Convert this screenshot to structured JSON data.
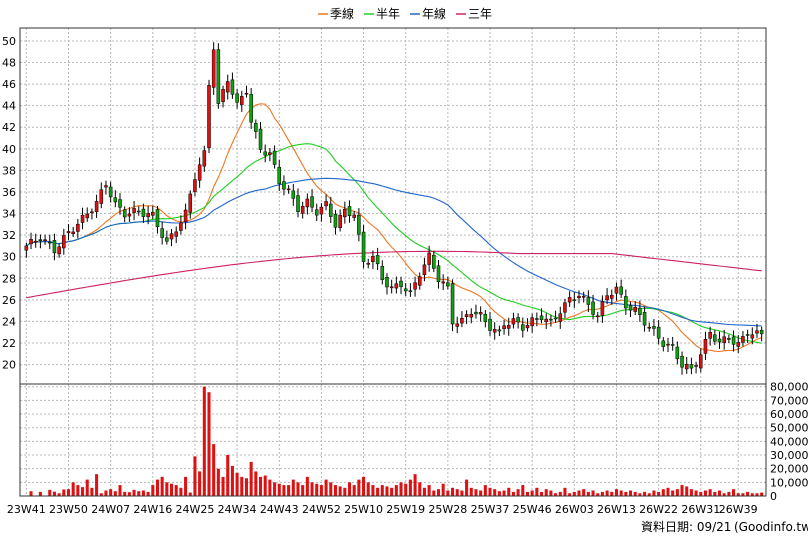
{
  "legend": [
    {
      "name": "季線",
      "color": "#ee7722"
    },
    {
      "name": "半年",
      "color": "#22cc22"
    },
    {
      "name": "年線",
      "color": "#2266cc"
    },
    {
      "name": "三年",
      "color": "#cc2266"
    }
  ],
  "footer": {
    "date_label": "資料日期: 09/21",
    "site": "(Goodinfo.tw)"
  },
  "chart_data": {
    "type": "candlestick",
    "price_axis": {
      "ticks": [
        20,
        22,
        24,
        26,
        28,
        30,
        32,
        34,
        36,
        38,
        40,
        42,
        44,
        46,
        48,
        50
      ],
      "ylim": [
        18.2,
        51.2
      ]
    },
    "volume_axis": {
      "ticks": [
        0,
        10000,
        20000,
        30000,
        40000,
        50000,
        60000,
        70000,
        80000
      ],
      "tick_labels": [
        "0",
        "10,000",
        "20,000",
        "30,000",
        "40,000",
        "50,000",
        "60,000",
        "70,000",
        "80,000"
      ],
      "ylim": [
        0,
        82000
      ]
    },
    "x_labels": [
      "23W41",
      "23W50",
      "24W07",
      "24W16",
      "24W25",
      "24W34",
      "24W43",
      "24W52",
      "25W10",
      "25W19",
      "25W28",
      "25W37",
      "25W46",
      "26W03",
      "26W13",
      "26W22",
      "26W31",
      "26W39"
    ],
    "x_label_index": [
      0,
      9,
      18,
      27,
      36,
      45,
      54,
      63,
      72,
      81,
      90,
      99,
      108,
      117,
      126,
      135,
      144,
      152
    ],
    "close_anchors": [
      [
        0,
        31.0
      ],
      [
        3,
        31.8
      ],
      [
        6,
        30.6
      ],
      [
        9,
        32.2
      ],
      [
        12,
        33.5
      ],
      [
        15,
        35.0
      ],
      [
        17,
        36.8
      ],
      [
        19,
        34.8
      ],
      [
        21,
        34.0
      ],
      [
        24,
        34.2
      ],
      [
        27,
        33.8
      ],
      [
        30,
        31.2
      ],
      [
        32,
        32.6
      ],
      [
        34,
        34.0
      ],
      [
        36,
        37.5
      ],
      [
        38,
        39.5
      ],
      [
        39,
        46.0
      ],
      [
        40,
        49.5
      ],
      [
        41,
        44.0
      ],
      [
        43,
        46.5
      ],
      [
        45,
        44.0
      ],
      [
        47,
        45.5
      ],
      [
        48,
        42.5
      ],
      [
        50,
        40.0
      ],
      [
        52,
        39.5
      ],
      [
        54,
        37.0
      ],
      [
        56,
        36.0
      ],
      [
        58,
        34.5
      ],
      [
        60,
        35.0
      ],
      [
        62,
        34.2
      ],
      [
        64,
        34.8
      ],
      [
        66,
        33.0
      ],
      [
        68,
        34.2
      ],
      [
        70,
        34.0
      ],
      [
        72,
        29.5
      ],
      [
        74,
        30.0
      ],
      [
        76,
        28.0
      ],
      [
        78,
        27.0
      ],
      [
        80,
        27.5
      ],
      [
        82,
        26.5
      ],
      [
        84,
        28.5
      ],
      [
        86,
        30.0
      ],
      [
        88,
        28.0
      ],
      [
        90,
        27.0
      ],
      [
        91,
        24.0
      ],
      [
        93,
        24.0
      ],
      [
        95,
        25.0
      ],
      [
        97,
        24.5
      ],
      [
        99,
        23.5
      ],
      [
        101,
        22.8
      ],
      [
        102,
        23.8
      ],
      [
        104,
        24.0
      ],
      [
        106,
        23.5
      ],
      [
        108,
        24.0
      ],
      [
        110,
        24.5
      ],
      [
        112,
        23.8
      ],
      [
        114,
        25.0
      ],
      [
        116,
        26.0
      ],
      [
        118,
        26.5
      ],
      [
        120,
        25.5
      ],
      [
        122,
        24.5
      ],
      [
        124,
        26.5
      ],
      [
        126,
        27.0
      ],
      [
        128,
        25.5
      ],
      [
        130,
        25.0
      ],
      [
        132,
        24.0
      ],
      [
        134,
        23.0
      ],
      [
        136,
        22.0
      ],
      [
        138,
        21.5
      ],
      [
        140,
        20.0
      ],
      [
        142,
        19.5
      ],
      [
        144,
        21.0
      ],
      [
        146,
        23.0
      ],
      [
        148,
        22.0
      ],
      [
        150,
        22.5
      ],
      [
        152,
        21.8
      ],
      [
        154,
        23.0
      ],
      [
        156,
        22.8
      ],
      [
        158,
        22.8
      ]
    ],
    "volume_bars": [
      0,
      3500,
      0,
      3000,
      0,
      4500,
      3200,
      2000,
      4800,
      5000,
      10000,
      8000,
      6500,
      12000,
      6000,
      16000,
      2000,
      4000,
      5000,
      3500,
      8000,
      3000,
      2800,
      4500,
      3500,
      4000,
      3000,
      8000,
      12000,
      14000,
      10000,
      9000,
      8000,
      6000,
      14000,
      2500,
      29000,
      18000,
      80000,
      76000,
      38000,
      20000,
      14000,
      30000,
      22000,
      17000,
      14000,
      13000,
      25000,
      18000,
      14000,
      15000,
      12000,
      10000,
      9000,
      8000,
      8000,
      12000,
      10000,
      8000,
      14000,
      10000,
      9000,
      8000,
      12000,
      10000,
      8000,
      7000,
      6000,
      10000,
      8000,
      12000,
      14000,
      10000,
      8000,
      6000,
      8000,
      7000,
      6000,
      8000,
      10000,
      9000,
      12000,
      16000,
      10000,
      6000,
      8000,
      4000,
      5000,
      9000,
      4000,
      6000,
      5000,
      4000,
      12000,
      6000,
      5000,
      4000,
      8000,
      6000,
      5000,
      3500,
      4000,
      6000,
      3000,
      5000,
      8000,
      3000,
      4000,
      6000,
      3000,
      5000,
      4000,
      2000,
      3000,
      6000,
      2000,
      3000,
      4000,
      5000,
      3000,
      4000,
      2000,
      3000,
      4000,
      3000,
      5000,
      4000,
      3000,
      4000,
      3000,
      2000,
      3000,
      2000,
      4000,
      3000,
      5000,
      6000,
      4000,
      5000,
      8000,
      7000,
      5000,
      4000,
      3000,
      4000,
      5000,
      3000,
      4000,
      2000,
      3000,
      5000,
      2000,
      2000,
      3000,
      2000,
      2000,
      2500
    ]
  }
}
